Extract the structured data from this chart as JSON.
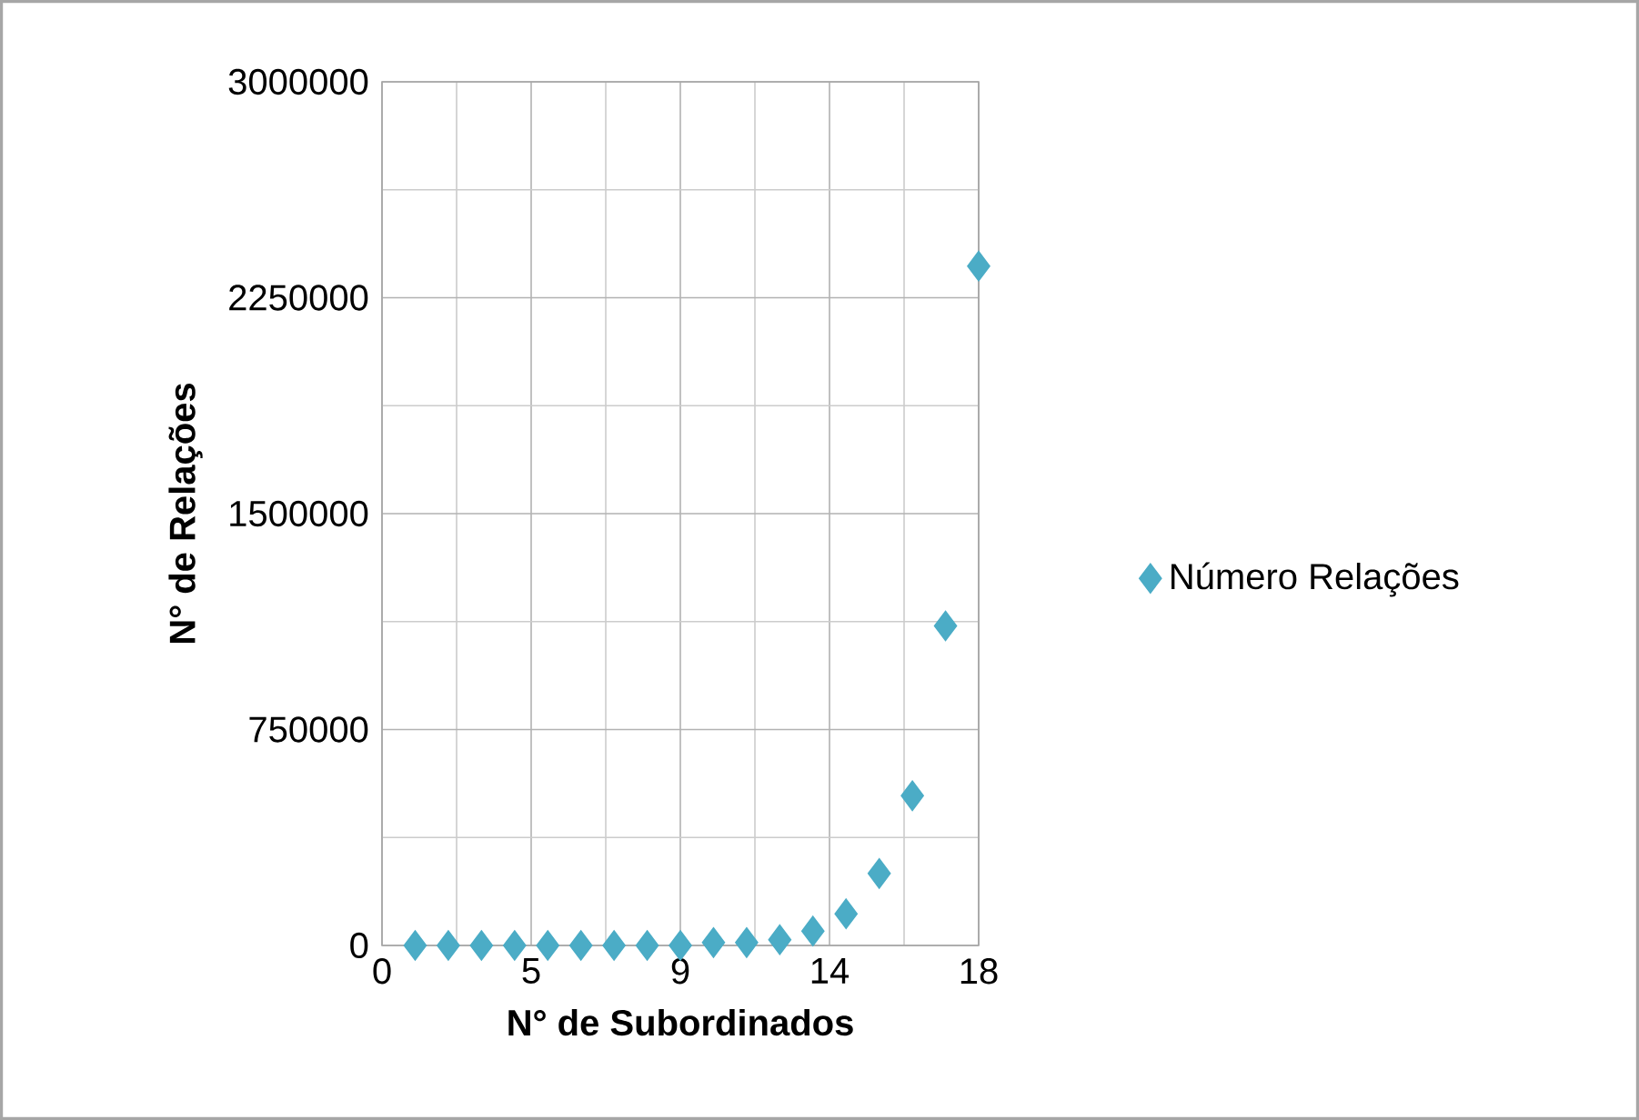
{
  "chart_data": {
    "type": "scatter",
    "xlabel": "N° de Subordinados",
    "ylabel": "N° de Relações",
    "x": [
      1,
      2,
      3,
      4,
      5,
      6,
      7,
      8,
      9,
      10,
      11,
      12,
      13,
      14,
      15,
      16,
      17,
      18
    ],
    "series": [
      {
        "name": "Número Relações",
        "color": "#4bacc6",
        "values": [
          0,
          0,
          0,
          0,
          0,
          0,
          0,
          0,
          0,
          10000,
          10000,
          20000,
          50000,
          110000,
          250000,
          520000,
          1110000,
          2360000
        ]
      }
    ],
    "xlim": [
      0,
      18
    ],
    "xticks": [
      0,
      {
        "value": 4.5,
        "label": "5"
      },
      9,
      {
        "value": 13.5,
        "label": "14"
      },
      18
    ],
    "ylim": [
      0,
      3000000
    ],
    "yticks": [
      0,
      750000,
      1500000,
      2250000,
      3000000
    ],
    "grid": true,
    "legend": "right",
    "marker": "diamond"
  }
}
